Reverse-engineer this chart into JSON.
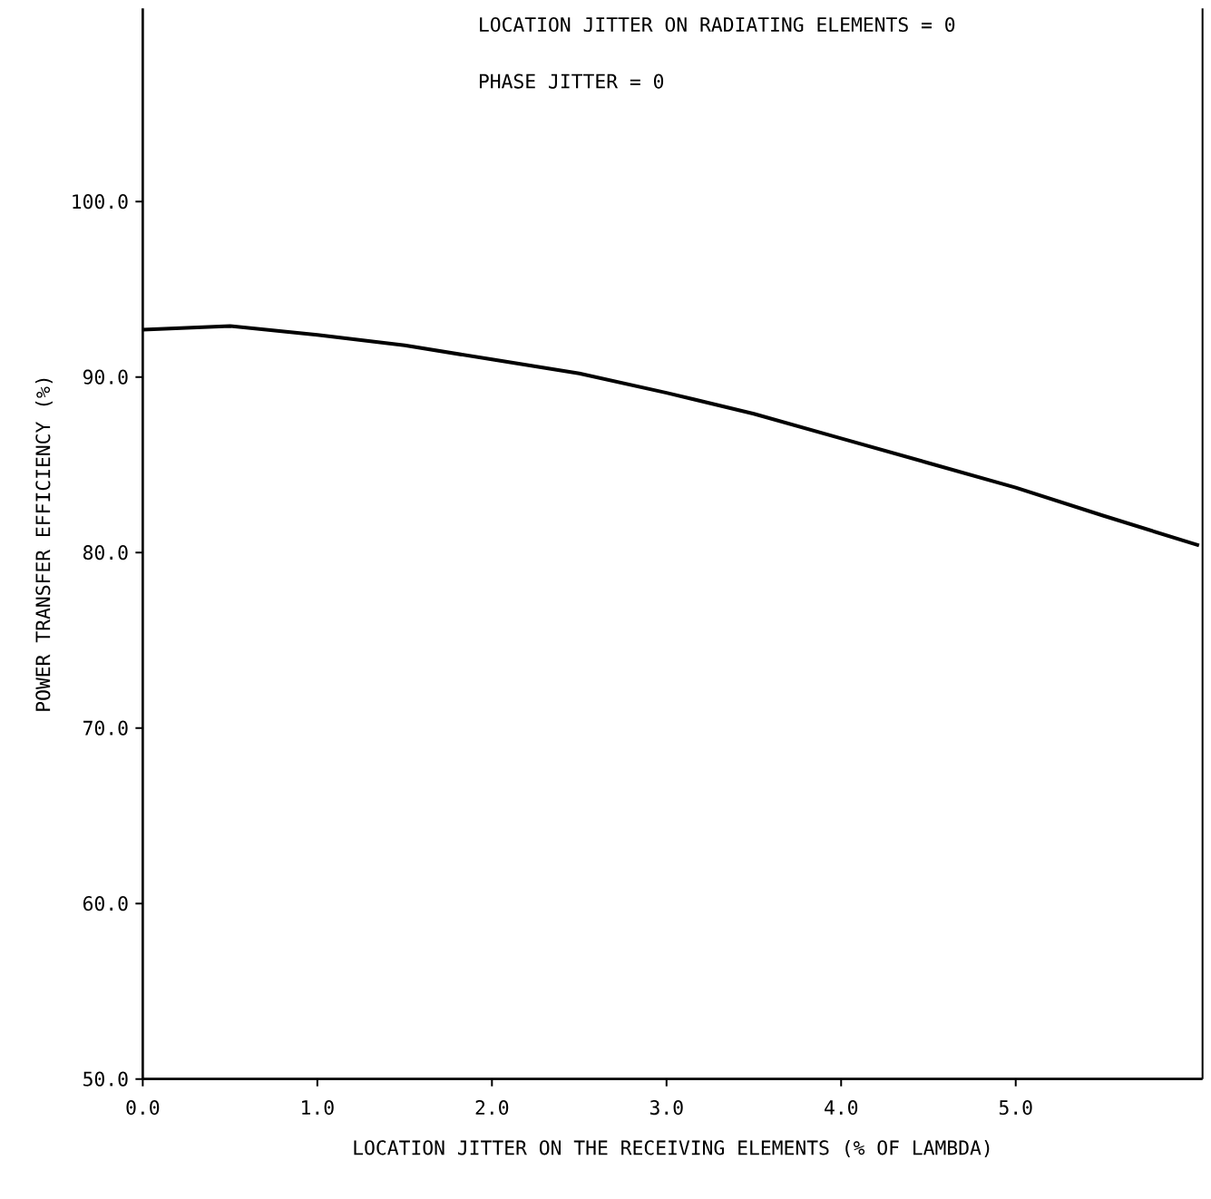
{
  "chart_data": {
    "type": "line",
    "xlabel": "LOCATION JITTER ON THE RECEIVING ELEMENTS (% OF LAMBDA)",
    "ylabel": "POWER TRANSFER EFFICIENCY (%)",
    "annotations": [
      "LOCATION JITTER ON RADIATING ELEMENTS = 0",
      "PHASE JITTER = 0"
    ],
    "x": [
      0,
      0.5,
      1,
      1.5,
      2,
      2.5,
      3,
      3.5,
      4,
      4.5,
      5,
      5.5,
      6.05
    ],
    "series": [
      {
        "color": "#000000",
        "values": [
          92.7,
          92.9,
          92.4,
          91.8,
          91.0,
          90.2,
          89.1,
          87.9,
          86.5,
          85.1,
          83.7,
          82.1,
          80.4
        ]
      }
    ],
    "xlim": [
      0,
      6.07
    ],
    "ylim": [
      50,
      111
    ],
    "xticks": [
      {
        "value": 0,
        "label": "0.0"
      },
      {
        "value": 1,
        "label": "1.0"
      },
      {
        "value": 2,
        "label": "2.0"
      },
      {
        "value": 3,
        "label": "3.0"
      },
      {
        "value": 4,
        "label": "4.0"
      },
      {
        "value": 5,
        "label": "5.0"
      }
    ],
    "yticks": [
      {
        "value": 50,
        "label": "50.0"
      },
      {
        "value": 60,
        "label": "60.0"
      },
      {
        "value": 70,
        "label": "70.0"
      },
      {
        "value": 80,
        "label": "80.0"
      },
      {
        "value": 90,
        "label": "90.0"
      },
      {
        "value": 100,
        "label": "100.0"
      }
    ],
    "grid": false,
    "marker": "none",
    "line_style": "solid"
  }
}
